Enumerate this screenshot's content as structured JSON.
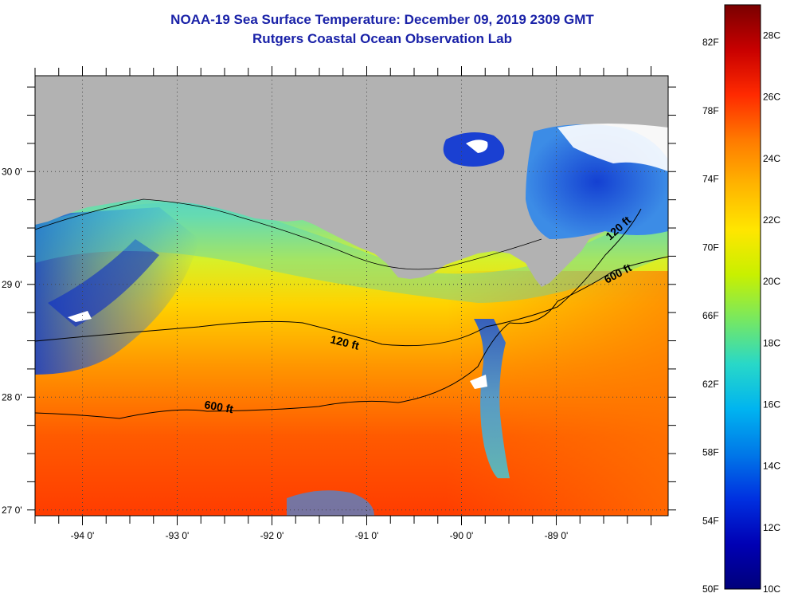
{
  "title": "NOAA-19 Sea Surface Temperature:  December 09, 2019 2309 GMT",
  "subtitle": "Rutgers Coastal Ocean Observation Lab",
  "map": {
    "lon_ticks": [
      {
        "value": -94,
        "label": "-94 0'"
      },
      {
        "value": -93,
        "label": "-93 0'"
      },
      {
        "value": -92,
        "label": "-92 0'"
      },
      {
        "value": -91,
        "label": "-91 0'"
      },
      {
        "value": -90,
        "label": "-90 0'"
      },
      {
        "value": -89,
        "label": "-89 0'"
      }
    ],
    "lat_ticks": [
      {
        "value": 30,
        "label": "30 0'"
      },
      {
        "value": 29,
        "label": "29 0'"
      },
      {
        "value": 28,
        "label": "28 0'"
      },
      {
        "value": 27,
        "label": "27 0'"
      }
    ],
    "contours": [
      {
        "label": "120 ft"
      },
      {
        "label": "120 ft"
      },
      {
        "label": "600 ft"
      },
      {
        "label": "600 ft"
      }
    ],
    "colors": {
      "land": "#b2b2b2",
      "contour": "#000000"
    }
  },
  "colorbar": {
    "fahrenheit": [
      "82F",
      "78F",
      "74F",
      "70F",
      "66F",
      "62F",
      "58F",
      "54F",
      "50F"
    ],
    "celsius": [
      "28C",
      "26C",
      "24C",
      "22C",
      "20C",
      "18C",
      "16C",
      "14C",
      "12C",
      "10C"
    ],
    "gradient": [
      "#7a0000",
      "#c80000",
      "#ff2a00",
      "#ff7a00",
      "#ffb400",
      "#ffe600",
      "#c8f000",
      "#78e860",
      "#28d8c8",
      "#00b4f0",
      "#0078e8",
      "#0030e0",
      "#0000b4",
      "#00007a"
    ]
  }
}
